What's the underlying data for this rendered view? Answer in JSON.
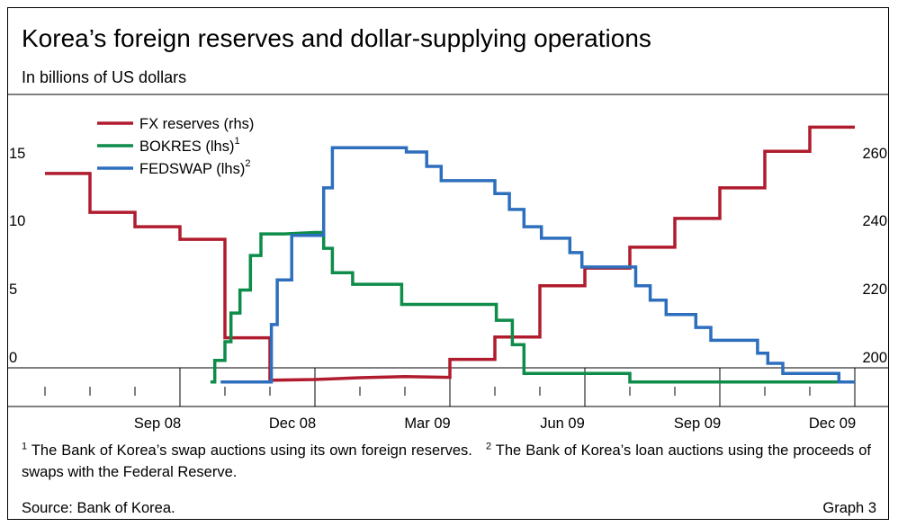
{
  "header": {
    "title": "Korea’s foreign reserves and dollar-supplying operations",
    "subtitle": "In billions of US dollars"
  },
  "footnotes": {
    "note1_mark": "1",
    "note1_text": " The Bank of Korea’s swap auctions using its own foreign reserves.",
    "note2_mark": "2",
    "note2_text": " The Bank of Korea’s loan auctions using the proceeds of swaps with the Federal Reserve."
  },
  "footer": {
    "source": "Source: Bank of Korea.",
    "graph_number": "Graph 3"
  },
  "chart_data": {
    "type": "line",
    "x_tick_labels": [
      "Sep 08",
      "Dec 08",
      "Mar 09",
      "Jun 09",
      "Sep 09",
      "Dec 09"
    ],
    "y_left": {
      "ticks": [
        0,
        5,
        10,
        15
      ],
      "tick_labels": [
        "0",
        "5",
        "10",
        "15"
      ],
      "range": [
        -1.7,
        20
      ]
    },
    "y_right": {
      "ticks": [
        200,
        220,
        240,
        260
      ],
      "tick_labels": [
        "200",
        "220",
        "240",
        "260"
      ],
      "range": [
        193.2,
        280
      ]
    },
    "grid": false,
    "legend_placement": "top-left",
    "series": [
      {
        "name": "FX reserves (rhs)",
        "axis": "right",
        "color": "#b01c2e",
        "points": [
          [
            "2008-06-30",
            258.0
          ],
          [
            "2008-07-31",
            258.0
          ],
          [
            "2008-07-31",
            247.2
          ],
          [
            "2008-08-31",
            247.2
          ],
          [
            "2008-08-31",
            243.2
          ],
          [
            "2008-09-30",
            243.2
          ],
          [
            "2008-09-30",
            239.7
          ],
          [
            "2008-10-31",
            239.7
          ],
          [
            "2008-10-31",
            212.3
          ],
          [
            "2008-11-30",
            212.3
          ],
          [
            "2008-11-30",
            200.5
          ],
          [
            "2008-12-31",
            200.7
          ],
          [
            "2009-01-31",
            201.2
          ],
          [
            "2009-02-28",
            201.5
          ],
          [
            "2009-03-31",
            201.3
          ],
          [
            "2009-03-31",
            206.3
          ],
          [
            "2009-04-30",
            206.3
          ],
          [
            "2009-04-30",
            212.5
          ],
          [
            "2009-05-31",
            212.5
          ],
          [
            "2009-05-31",
            226.8
          ],
          [
            "2009-06-30",
            226.8
          ],
          [
            "2009-06-30",
            231.7
          ],
          [
            "2009-07-31",
            231.7
          ],
          [
            "2009-07-31",
            237.5
          ],
          [
            "2009-08-31",
            237.5
          ],
          [
            "2009-08-31",
            245.5
          ],
          [
            "2009-09-30",
            245.5
          ],
          [
            "2009-09-30",
            254.0
          ],
          [
            "2009-10-31",
            254.0
          ],
          [
            "2009-10-31",
            264.2
          ],
          [
            "2009-11-30",
            264.2
          ],
          [
            "2009-11-30",
            270.9
          ],
          [
            "2009-12-31",
            270.9
          ]
        ]
      },
      {
        "name": "BOKRES (lhs)",
        "name_sup": "1",
        "axis": "left",
        "color": "#0e8c4a",
        "points": [
          [
            "2008-10-21",
            0.0
          ],
          [
            "2008-10-24",
            0.0
          ],
          [
            "2008-10-24",
            1.5
          ],
          [
            "2008-10-31",
            1.5
          ],
          [
            "2008-10-31",
            2.8
          ],
          [
            "2008-11-04",
            2.8
          ],
          [
            "2008-11-04",
            4.8
          ],
          [
            "2008-11-10",
            4.8
          ],
          [
            "2008-11-10",
            6.4
          ],
          [
            "2008-11-17",
            6.4
          ],
          [
            "2008-11-17",
            8.8
          ],
          [
            "2008-11-24",
            8.8
          ],
          [
            "2008-11-24",
            10.3
          ],
          [
            "2008-12-10",
            10.3
          ],
          [
            "2008-12-31",
            10.4
          ],
          [
            "2009-01-06",
            10.4
          ],
          [
            "2009-01-06",
            9.3
          ],
          [
            "2009-01-12",
            9.3
          ],
          [
            "2009-01-12",
            7.6
          ],
          [
            "2009-01-26",
            7.6
          ],
          [
            "2009-01-26",
            6.8
          ],
          [
            "2009-02-26",
            6.8
          ],
          [
            "2009-02-26",
            5.4
          ],
          [
            "2009-05-01",
            5.4
          ],
          [
            "2009-05-01",
            4.3
          ],
          [
            "2009-05-12",
            4.3
          ],
          [
            "2009-05-12",
            2.6
          ],
          [
            "2009-05-20",
            2.6
          ],
          [
            "2009-05-20",
            0.6
          ],
          [
            "2009-07-31",
            0.6
          ],
          [
            "2009-07-31",
            0.0
          ],
          [
            "2009-12-31",
            0.0
          ]
        ]
      },
      {
        "name": "FEDSWAP (lhs)",
        "name_sup": "2",
        "axis": "left",
        "color": "#2e6fbd",
        "points": [
          [
            "2008-10-28",
            0.0
          ],
          [
            "2008-12-01",
            0.0
          ],
          [
            "2008-12-01",
            4.0
          ],
          [
            "2008-12-05",
            4.0
          ],
          [
            "2008-12-05",
            7.1
          ],
          [
            "2008-12-15",
            7.1
          ],
          [
            "2008-12-15",
            10.2
          ],
          [
            "2008-12-31",
            10.2
          ],
          [
            "2009-01-06",
            10.2
          ],
          [
            "2009-01-06",
            13.5
          ],
          [
            "2009-01-12",
            13.5
          ],
          [
            "2009-01-12",
            16.3
          ],
          [
            "2009-03-01",
            16.3
          ],
          [
            "2009-03-01",
            16.0
          ],
          [
            "2009-03-15",
            16.0
          ],
          [
            "2009-03-15",
            15.0
          ],
          [
            "2009-03-25",
            15.0
          ],
          [
            "2009-03-25",
            14.0
          ],
          [
            "2009-04-30",
            14.0
          ],
          [
            "2009-04-30",
            13.1
          ],
          [
            "2009-05-10",
            13.1
          ],
          [
            "2009-05-10",
            12.0
          ],
          [
            "2009-05-20",
            12.0
          ],
          [
            "2009-05-20",
            10.8
          ],
          [
            "2009-06-01",
            10.8
          ],
          [
            "2009-06-01",
            10.0
          ],
          [
            "2009-06-20",
            10.0
          ],
          [
            "2009-06-20",
            9.0
          ],
          [
            "2009-06-28",
            9.0
          ],
          [
            "2009-06-28",
            8.0
          ],
          [
            "2009-08-04",
            8.0
          ],
          [
            "2009-08-04",
            6.7
          ],
          [
            "2009-08-14",
            6.7
          ],
          [
            "2009-08-14",
            5.7
          ],
          [
            "2009-08-25",
            5.7
          ],
          [
            "2009-08-25",
            4.7
          ],
          [
            "2009-09-14",
            4.7
          ],
          [
            "2009-09-14",
            3.8
          ],
          [
            "2009-09-24",
            3.8
          ],
          [
            "2009-09-24",
            2.9
          ],
          [
            "2009-10-26",
            2.9
          ],
          [
            "2009-10-26",
            2.0
          ],
          [
            "2009-11-02",
            2.0
          ],
          [
            "2009-11-02",
            1.3
          ],
          [
            "2009-11-12",
            1.3
          ],
          [
            "2009-11-12",
            0.6
          ],
          [
            "2009-12-20",
            0.6
          ],
          [
            "2009-12-20",
            0.0
          ],
          [
            "2009-12-31",
            0.0
          ]
        ]
      }
    ]
  }
}
